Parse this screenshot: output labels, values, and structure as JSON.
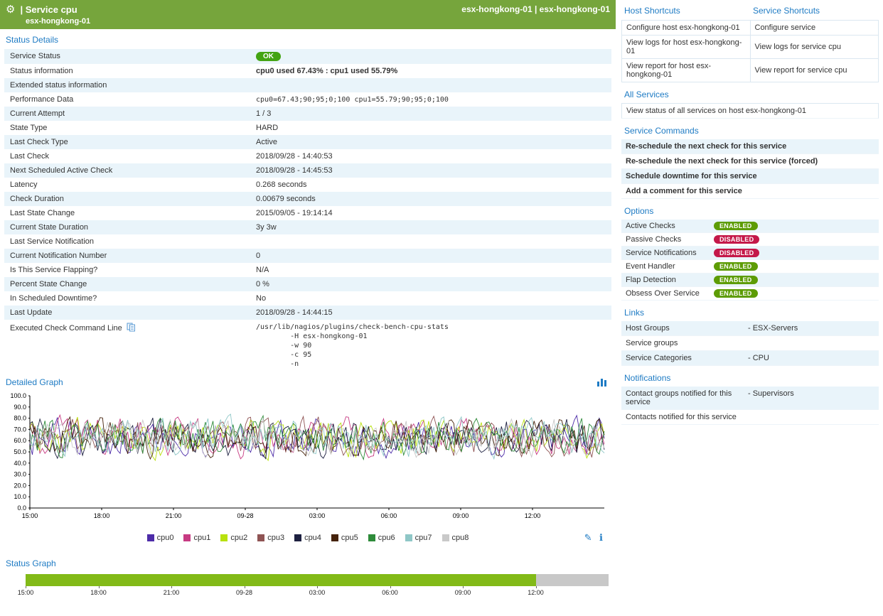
{
  "theme": {
    "header_green": "#76a53c",
    "heading_blue": "#1e7bc4",
    "row_alt": "#e9f4fa",
    "ok_green": "#43a413",
    "enabled_green": "#5d9c05",
    "disabled_red": "#c41849",
    "status_bar_green": "#82ba18",
    "status_bar_gray": "#c8c8c8"
  },
  "header": {
    "title": "| Service cpu",
    "subtitle": "esx-hongkong-01",
    "right": "esx-hongkong-01 | esx-hongkong-01"
  },
  "status_details": {
    "heading": "Status Details",
    "rows": [
      {
        "label": "Service Status",
        "badge": "OK"
      },
      {
        "label": "Status information",
        "value": "cpu0 used 67.43% : cpu1 used 55.79%",
        "style": "bold"
      },
      {
        "label": "Extended status information",
        "value": ""
      },
      {
        "label": "Performance Data",
        "value": "cpu0=67.43;90;95;0;100 cpu1=55.79;90;95;0;100",
        "style": "mono"
      },
      {
        "label": "Current Attempt",
        "value": "1 / 3"
      },
      {
        "label": "State Type",
        "value": "HARD"
      },
      {
        "label": "Last Check Type",
        "value": "Active"
      },
      {
        "label": "Last Check",
        "value": "2018/09/28 - 14:40:53"
      },
      {
        "label": "Next Scheduled Active Check",
        "value": "2018/09/28 - 14:45:53"
      },
      {
        "label": "Latency",
        "value": "0.268 seconds"
      },
      {
        "label": "Check Duration",
        "value": "0.00679 seconds"
      },
      {
        "label": "Last State Change",
        "value": "2015/09/05 - 19:14:14"
      },
      {
        "label": "Current State Duration",
        "value": "3y 3w"
      },
      {
        "label": "Last Service Notification",
        "value": ""
      },
      {
        "label": "Current Notification Number",
        "value": "0"
      },
      {
        "label": "Is This Service Flapping?",
        "value": "N/A"
      },
      {
        "label": "Percent State Change",
        "value": "0 %"
      },
      {
        "label": "In Scheduled Downtime?",
        "value": "No"
      },
      {
        "label": "Last Update",
        "value": "2018/09/28 - 14:44:15"
      },
      {
        "label": "Executed Check Command Line",
        "label_icon": "copy-icon",
        "value": "/usr/lib/nagios/plugins/check-bench-cpu-stats\n        -H esx-hongkong-01\n        -w 90\n        -c 95\n        -n",
        "style": "pre"
      }
    ]
  },
  "detailed_graph": {
    "heading": "Detailed Graph",
    "chart_data": {
      "type": "line",
      "title": "",
      "xlabel": "",
      "ylabel": "",
      "ylim": [
        0,
        100
      ],
      "y_tick_step": 10,
      "x_ticks": [
        "15:00",
        "18:00",
        "21:00",
        "09-28",
        "03:00",
        "06:00",
        "09:00",
        "12:00"
      ],
      "series": [
        {
          "name": "cpu0",
          "color": "#4d2ca8"
        },
        {
          "name": "cpu1",
          "color": "#c73b82"
        },
        {
          "name": "cpu2",
          "color": "#b8e10e"
        },
        {
          "name": "cpu3",
          "color": "#8f5454"
        },
        {
          "name": "cpu4",
          "color": "#1d2040"
        },
        {
          "name": "cpu5",
          "color": "#45220b"
        },
        {
          "name": "cpu6",
          "color": "#2e8b3a"
        },
        {
          "name": "cpu7",
          "color": "#8fc7c7"
        },
        {
          "name": "cpu8",
          "color": "#c9c9c9"
        }
      ],
      "value_range_approx": [
        45,
        85
      ],
      "grid": false,
      "legend_position": "bottom"
    }
  },
  "status_graph": {
    "heading": "Status Graph",
    "x_ticks": [
      "15:00",
      "18:00",
      "21:00",
      "09-28",
      "03:00",
      "06:00",
      "09:00",
      "12:00"
    ],
    "ok_percent": 87.6
  },
  "right_panel": {
    "shortcuts": {
      "host_heading": "Host Shortcuts",
      "service_heading": "Service Shortcuts",
      "rows": [
        [
          "Configure host esx-hongkong-01",
          "Configure service"
        ],
        [
          "View logs for host esx-hongkong-01",
          "View logs for service cpu"
        ],
        [
          "View report for host esx-hongkong-01",
          "View report for service cpu"
        ]
      ]
    },
    "all_services": {
      "heading": "All Services",
      "items": [
        "View status of all services on host esx-hongkong-01"
      ]
    },
    "service_commands": {
      "heading": "Service Commands",
      "items": [
        "Re-schedule the next check for this service",
        "Re-schedule the next check for this service (forced)",
        "Schedule downtime for this service",
        "Add a comment for this service"
      ]
    },
    "options": {
      "heading": "Options",
      "rows": [
        {
          "label": "Active Checks",
          "state": "ENABLED"
        },
        {
          "label": "Passive Checks",
          "state": "DISABLED"
        },
        {
          "label": "Service Notifications",
          "state": "DISABLED"
        },
        {
          "label": "Event Handler",
          "state": "ENABLED"
        },
        {
          "label": "Flap Detection",
          "state": "ENABLED"
        },
        {
          "label": "Obsess Over Service",
          "state": "ENABLED"
        }
      ]
    },
    "links": {
      "heading": "Links",
      "rows": [
        {
          "label": "Host Groups",
          "value": "- ESX-Servers"
        },
        {
          "label": "Service groups",
          "value": ""
        },
        {
          "label": "Service Categories",
          "value": "- CPU"
        }
      ]
    },
    "notifications": {
      "heading": "Notifications",
      "rows": [
        {
          "label": "Contact groups notified for this service",
          "value": "- Supervisors"
        },
        {
          "label": "Contacts notified for this service",
          "value": ""
        }
      ]
    }
  }
}
